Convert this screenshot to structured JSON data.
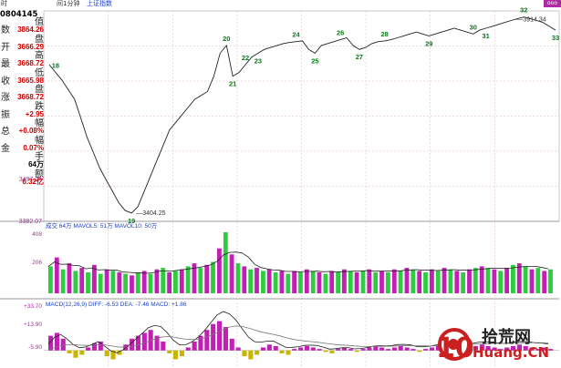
{
  "header": {
    "time_label": "时",
    "chart_tab": "间1分钟",
    "index_tab": "上证指数",
    "code": "0804145",
    "corner_tag": "ooo"
  },
  "sidebar": {
    "labels": [
      "数",
      "开",
      "最",
      "收",
      "涨",
      "振",
      "总",
      "金"
    ],
    "items": [
      {
        "label": "值",
        "value": "3864.26",
        "color": "#cc0000"
      },
      {
        "label": "盘",
        "value": "3666.29",
        "color": "#cc0000"
      },
      {
        "label": "高",
        "value": "3668.72",
        "color": "#cc0000"
      },
      {
        "label": "低",
        "value": "3665.98",
        "color": "#cc0000"
      },
      {
        "label": "盘",
        "value": "3668.72",
        "color": "#cc0000"
      },
      {
        "label": "跌",
        "value": "+2.95",
        "color": "#cc0000"
      },
      {
        "label": "幅",
        "value": "+0.08%",
        "color": "#cc0000"
      },
      {
        "label": "幅",
        "value": "0.07%",
        "color": "#cc0000"
      },
      {
        "label": "手",
        "value": "64万",
        "color": "#000000"
      },
      {
        "label": "额",
        "value": "6.32亿",
        "color": "#cc0000"
      }
    ]
  },
  "price_panel": {
    "lower_axis_label": "3497.24",
    "bottom_axis_label": "3382.07",
    "low_annotation": "3404.25",
    "high_annotation": "3914.34"
  },
  "volume_panel": {
    "header": "成交  64万  MAVOL5: 51万  MAVOL10: 50万",
    "ytick_top": "408",
    "ytick_mid": "206"
  },
  "macd_panel": {
    "header": "MACD(12,26,9)  DIFF: -6.53  DEA: -7.46  MACD: +1.86",
    "ytick_top": "+33.70",
    "ytick_mid": "+13.90",
    "ytick_low": "-5.90"
  },
  "logo": {
    "number": "10",
    "cn": "拾荒网",
    "en": "Huang.CN"
  },
  "chart_data": [
    {
      "type": "line",
      "name": "price",
      "x": [
        0,
        1,
        2,
        3,
        4,
        5,
        6,
        7,
        8,
        9,
        10,
        11,
        12,
        13,
        14,
        15,
        16,
        17,
        18,
        19,
        20,
        21,
        22,
        23,
        24,
        25,
        26,
        27,
        28,
        29,
        30,
        31,
        32,
        33,
        34,
        35,
        36,
        37,
        38,
        39,
        40,
        41,
        42,
        43,
        44,
        45,
        46,
        47,
        48,
        49,
        50,
        51,
        52,
        53,
        54,
        55,
        56,
        57,
        58,
        59,
        60,
        61,
        62,
        63,
        64,
        65,
        66,
        67,
        68,
        69,
        70,
        71,
        72,
        73,
        74,
        75,
        76,
        77,
        78,
        79,
        80
      ],
      "values": [
        3790,
        3770,
        3750,
        3725,
        3700,
        3650,
        3600,
        3560,
        3520,
        3490,
        3460,
        3430,
        3410,
        3404,
        3420,
        3460,
        3500,
        3540,
        3580,
        3620,
        3640,
        3660,
        3680,
        3700,
        3710,
        3720,
        3760,
        3820,
        3840,
        3760,
        3770,
        3790,
        3810,
        3820,
        3830,
        3835,
        3840,
        3845,
        3848,
        3850,
        3852,
        3830,
        3820,
        3840,
        3845,
        3850,
        3855,
        3860,
        3840,
        3830,
        3835,
        3845,
        3850,
        3852,
        3855,
        3860,
        3865,
        3870,
        3875,
        3870,
        3865,
        3870,
        3875,
        3880,
        3885,
        3880,
        3875,
        3870,
        3880,
        3885,
        3890,
        3895,
        3900,
        3905,
        3910,
        3914,
        3910,
        3905,
        3900,
        3890,
        3880
      ],
      "ylim": [
        3382.07,
        3930
      ],
      "annotations": [
        {
          "label": "18",
          "i": 1
        },
        {
          "label": "19",
          "i": 13
        },
        {
          "label": "20",
          "i": 28
        },
        {
          "label": "21",
          "i": 29
        },
        {
          "label": "22",
          "i": 31
        },
        {
          "label": "23",
          "i": 33
        },
        {
          "label": "24",
          "i": 39
        },
        {
          "label": "25",
          "i": 42
        },
        {
          "label": "26",
          "i": 46
        },
        {
          "label": "27",
          "i": 49
        },
        {
          "label": "28",
          "i": 53
        },
        {
          "label": "29",
          "i": 60
        },
        {
          "label": "30",
          "i": 67
        },
        {
          "label": "31",
          "i": 69
        },
        {
          "label": "32",
          "i": 75
        },
        {
          "label": "33",
          "i": 80
        }
      ]
    },
    {
      "type": "bar",
      "name": "volume",
      "values": [
        180,
        240,
        160,
        200,
        150,
        170,
        140,
        190,
        130,
        160,
        150,
        140,
        130,
        120,
        140,
        150,
        130,
        160,
        170,
        140,
        150,
        160,
        180,
        200,
        170,
        190,
        210,
        300,
        408,
        260,
        200,
        180,
        160,
        170,
        150,
        160,
        140,
        150,
        130,
        150,
        140,
        160,
        150,
        140,
        130,
        150,
        140,
        160,
        150,
        140,
        150,
        160,
        140,
        150,
        140,
        160,
        150,
        170,
        160,
        150,
        140,
        160,
        150,
        170,
        160,
        150,
        140,
        160,
        170,
        180,
        170,
        160,
        150,
        170,
        190,
        200,
        180,
        160,
        170,
        150,
        160
      ],
      "ylim": [
        0,
        420
      ]
    },
    {
      "type": "bar",
      "name": "macd",
      "values": [
        10,
        12,
        8,
        -2,
        -5,
        -3,
        2,
        5,
        6,
        -4,
        -6,
        -3,
        4,
        8,
        10,
        12,
        14,
        10,
        6,
        -2,
        -6,
        -4,
        2,
        6,
        10,
        14,
        18,
        20,
        16,
        8,
        2,
        -4,
        -6,
        -3,
        2,
        4,
        3,
        -2,
        -3,
        1,
        2,
        3,
        2,
        1,
        -1,
        -2,
        1,
        2,
        1,
        -1,
        1,
        2,
        3,
        2,
        1,
        2,
        3,
        2,
        1,
        -1,
        1,
        2,
        3,
        4,
        3,
        2,
        1,
        2,
        3,
        4,
        3,
        2,
        1,
        2,
        3,
        4,
        3,
        2,
        1,
        2,
        1
      ],
      "ylim": [
        -12,
        34
      ]
    }
  ]
}
